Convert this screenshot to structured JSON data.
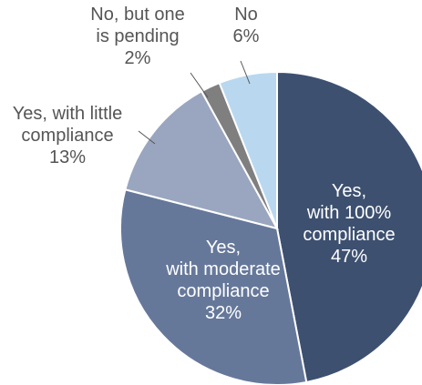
{
  "chart_data": {
    "type": "pie",
    "start_angle_deg": 0,
    "direction": "clockwise",
    "slices": [
      {
        "label_lines": [
          "Yes,",
          "with 100%",
          "compliance"
        ],
        "value_text": "47%",
        "value": 47,
        "color": "#3d5070"
      },
      {
        "label_lines": [
          "Yes,",
          "with moderate",
          "compliance"
        ],
        "value_text": "32%",
        "value": 32,
        "color": "#66789a"
      },
      {
        "label_lines": [
          "Yes, with little",
          "compliance"
        ],
        "value_text": "13%",
        "value": 13,
        "color": "#9aa6bf"
      },
      {
        "label_lines": [
          "No, but one",
          "is pending"
        ],
        "value_text": "2%",
        "value": 2,
        "color": "#7f7f7f"
      },
      {
        "label_lines": [
          "No"
        ],
        "value_text": "6%",
        "value": 6,
        "color": "#b9d8f0"
      }
    ]
  }
}
